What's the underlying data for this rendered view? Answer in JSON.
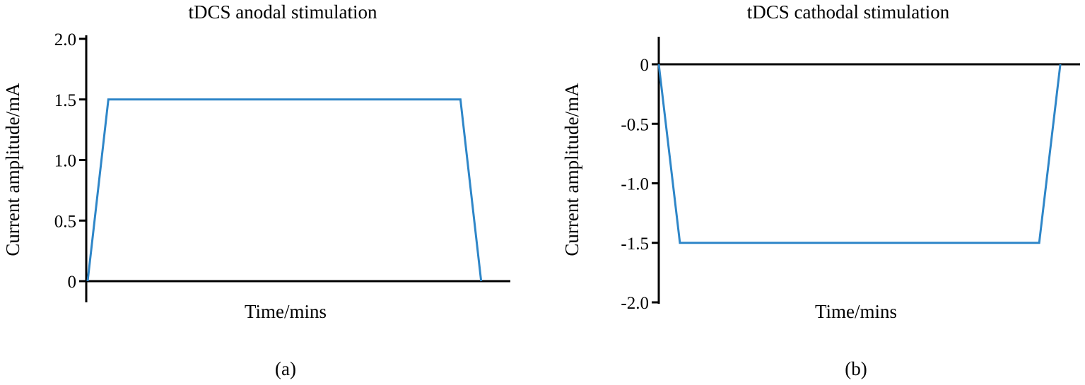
{
  "chart_data": [
    {
      "type": "line",
      "title": "tDCS anodal stimulation",
      "xlabel": "Time/mins",
      "ylabel": "Current amplitude/mA",
      "panel_label": "(a)",
      "ylim": [
        0,
        2.0
      ],
      "yticks": [
        "0",
        "0.5",
        "1.0",
        "1.5",
        "2.0"
      ],
      "ytick_values": [
        0,
        0.5,
        1.0,
        1.5,
        2.0
      ],
      "series": [
        {
          "x": [
            0,
            1,
            18,
            19
          ],
          "y": [
            0,
            1.5,
            1.5,
            0
          ],
          "color": "#2e86c8"
        }
      ]
    },
    {
      "type": "line",
      "title": "tDCS cathodal stimulation",
      "xlabel": "Time/mins",
      "ylabel": "Current amplitude/mA",
      "panel_label": "(b)",
      "ylim": [
        -2.0,
        0
      ],
      "yticks": [
        "0",
        "-0.5",
        "-1.0",
        "-1.5",
        "-2.0"
      ],
      "ytick_values": [
        0,
        -0.5,
        -1.0,
        -1.5,
        -2.0
      ],
      "series": [
        {
          "x": [
            0,
            1,
            18,
            19
          ],
          "y": [
            0,
            -1.5,
            -1.5,
            0
          ],
          "color": "#2e86c8"
        }
      ]
    }
  ]
}
